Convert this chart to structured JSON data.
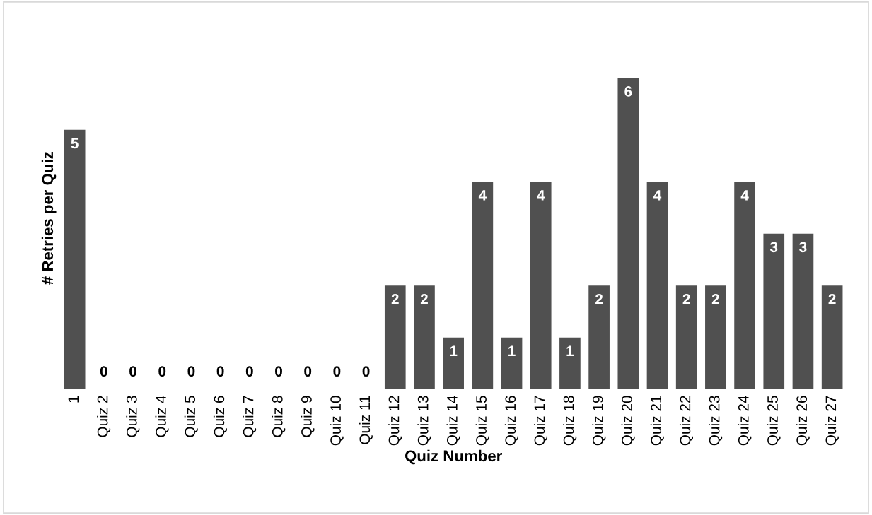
{
  "chart_data": {
    "type": "bar",
    "xlabel": "Quiz Number",
    "ylabel": "# Retries per Quiz",
    "categories": [
      "1",
      "Quiz 2",
      "Quiz 3",
      "Quiz 4",
      "Quiz 5",
      "Quiz 6",
      "Quiz 7",
      "Quiz 8",
      "Quiz 9",
      "Quiz 10",
      "Quiz 11",
      "Quiz 12",
      "Quiz 13",
      "Quiz 14",
      "Quiz 15",
      "Quiz 16",
      "Quiz 17",
      "Quiz 18",
      "Quiz 19",
      "Quiz 20",
      "Quiz 21",
      "Quiz 22",
      "Quiz 23",
      "Quiz 24",
      "Quiz 25",
      "Quiz 26",
      "Quiz 27"
    ],
    "values": [
      5,
      0,
      0,
      0,
      0,
      0,
      0,
      0,
      0,
      0,
      0,
      2,
      2,
      1,
      4,
      1,
      4,
      1,
      2,
      6,
      4,
      2,
      2,
      4,
      3,
      3,
      2
    ],
    "color": "#505050",
    "data_labels": true,
    "grid": false,
    "legend": false
  }
}
